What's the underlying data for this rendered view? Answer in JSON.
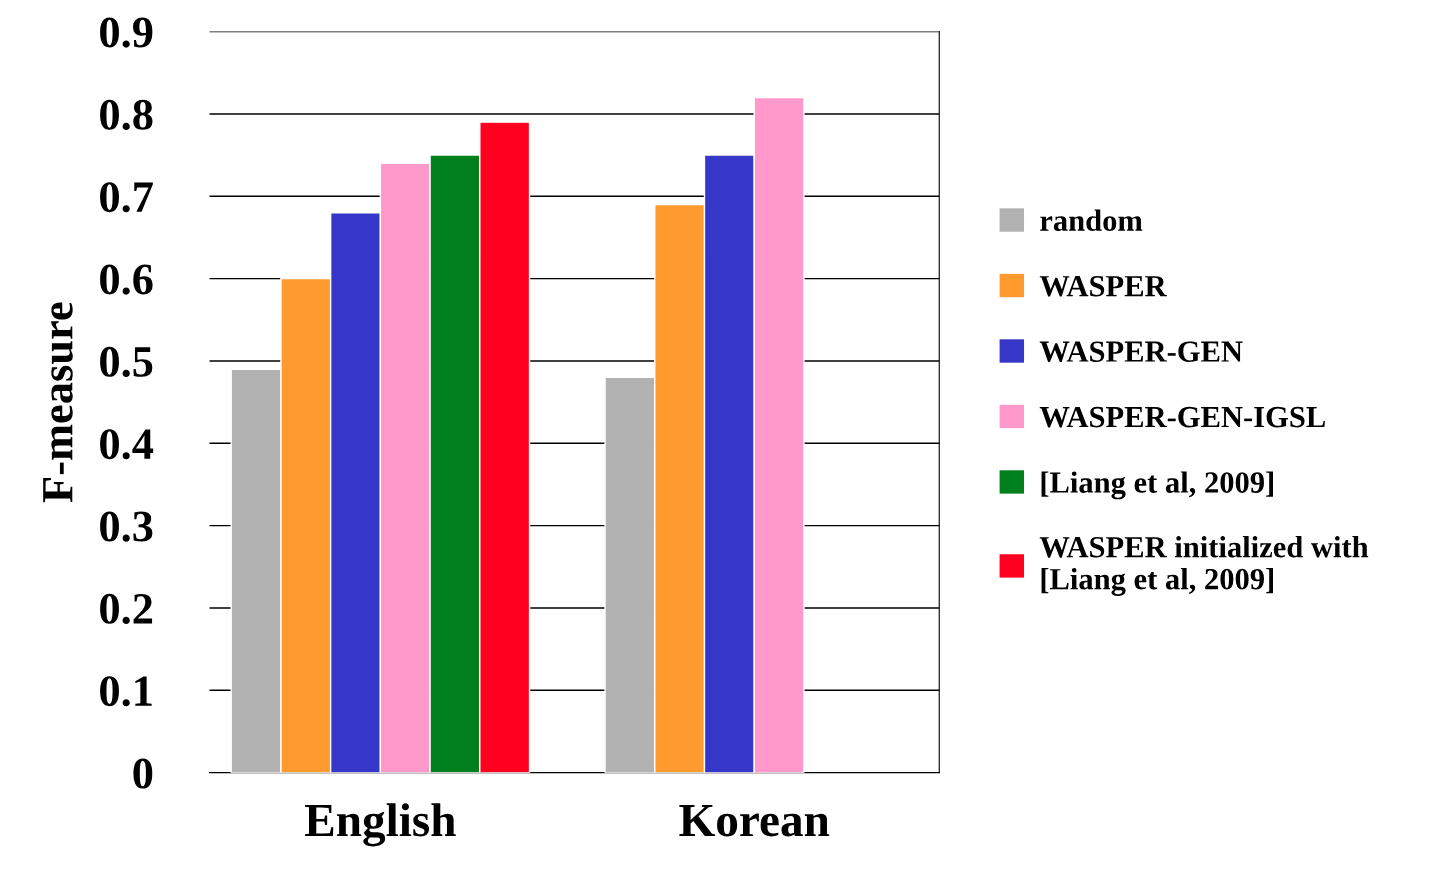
{
  "chart_data": {
    "type": "bar",
    "ylabel": "F-measure",
    "categories": [
      "English",
      "Korean"
    ],
    "series": [
      {
        "name": "random",
        "color": "#b2b2b2",
        "values": [
          0.49,
          0.48
        ]
      },
      {
        "name": "WASPER",
        "color": "#ff9a2e",
        "values": [
          0.6,
          0.69
        ]
      },
      {
        "name": "WASPER-GEN",
        "color": "#3636c8",
        "values": [
          0.68,
          0.75
        ]
      },
      {
        "name": "WASPER-GEN-IGSL",
        "color": "#ff99cc",
        "values": [
          0.74,
          0.82
        ]
      },
      {
        "name": "[Liang et al, 2009]",
        "color": "#007f1f",
        "values": [
          0.75,
          null
        ]
      },
      {
        "name": "WASPER initialized with\n[Liang et al, 2009]",
        "color": "#ff0020",
        "values": [
          0.79,
          null
        ]
      }
    ],
    "ylim": [
      0,
      0.9
    ],
    "yticks": [
      0,
      0.1,
      0.2,
      0.3,
      0.4,
      0.5,
      0.6,
      0.7,
      0.8,
      0.9
    ],
    "grid": "y",
    "legend": "right"
  }
}
